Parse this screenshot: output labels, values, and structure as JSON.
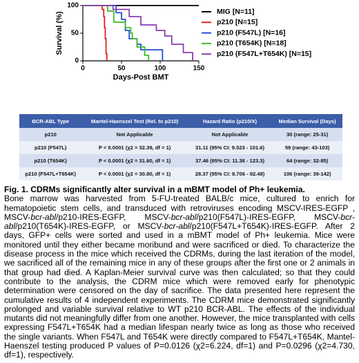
{
  "chart_data": {
    "type": "step",
    "ylabel": "Survival (%)",
    "xlabel": "Days-Post BMT",
    "xlim": [
      0,
      150
    ],
    "ylim": [
      0,
      100
    ],
    "xticks": [
      0,
      50,
      100,
      150
    ],
    "yticks": [
      0,
      50,
      100
    ],
    "series": [
      {
        "name": "MIG [N=11]",
        "color": "#000000",
        "x": [
          0,
          150
        ],
        "values": [
          100,
          100
        ]
      },
      {
        "name": "p210 [N=15]",
        "color": "#e0201b",
        "x": [
          0,
          25,
          27,
          28,
          29,
          30,
          31
        ],
        "values": [
          100,
          93,
          80,
          60,
          40,
          13,
          0
        ]
      },
      {
        "name": "p210 (F547L) [N=16]",
        "color": "#1f4fd6",
        "x": [
          0,
          43,
          50,
          55,
          60,
          70,
          75,
          103
        ],
        "values": [
          100,
          87,
          75,
          55,
          40,
          30,
          20,
          0
        ]
      },
      {
        "name": "p210 (T654K) [N=18]",
        "color": "#3dbb2a",
        "x": [
          0,
          32,
          40,
          55,
          62,
          64,
          70,
          80,
          85
        ],
        "values": [
          100,
          90,
          70,
          60,
          50,
          40,
          25,
          10,
          0
        ]
      },
      {
        "name": "p210 (F547L+T654K) [N=15]",
        "color": "#8a3fb0",
        "x": [
          0,
          39,
          60,
          75,
          95,
          106,
          115,
          130,
          142
        ],
        "values": [
          100,
          93,
          80,
          65,
          55,
          45,
          30,
          15,
          0
        ]
      }
    ]
  },
  "table": {
    "header": [
      "BCR-ABL Type",
      "Mantel-Haenszel Test (Rel. to p210)",
      "Hazard Ratio (p210/X)",
      "Median Survival (Days)"
    ],
    "rows": [
      [
        "p210",
        "Not Applicable",
        "Not Applicable",
        "30 (range: 25-31)"
      ],
      [
        "p210 (F547L)",
        "P < 0.0001 (χ2 = 32.39, df = 1)",
        "31.11 (95% CI: 9.523 - 101.6)",
        "59 (range: 43-103)"
      ],
      [
        "p210 (T654K)",
        "P < 0.0001 (χ2 = 31.60, df = 1)",
        "37.46 (95% CI: 11.38 - 123.3)",
        "64 (range: 32-85)"
      ],
      [
        "p210 (F547L+T654K)",
        "P < 0.0001 (χ2 = 30.80, df = 1)",
        "28.37 (95% CI: 8.706 - 92.48)",
        "106 (range: 39-142)"
      ]
    ]
  },
  "caption": {
    "title": "Fig. 1. CDRMs significantly alter survival in a mBMT model of Ph+ leukemia.",
    "body": [
      {
        "text": "Bone marrow was harvested from 5-FU-treated BALB/c mice, cultured to enrich for hematopoietic stem cells, and transduced with retroviruses encoding MSCV-IRES-EGFP , MSCV-"
      },
      {
        "text": "bcr-abl",
        "style": "italic"
      },
      {
        "text": "/p210-IRES-EGFP, MSCV-"
      },
      {
        "text": "bcr-abl",
        "style": "italic"
      },
      {
        "text": "/p210(F547L)-IRES-EGFP, MSCV-"
      },
      {
        "text": "bcr-abl",
        "style": "italic"
      },
      {
        "text": "/p210(T654K)-IRES-EGFP, or MSCV-"
      },
      {
        "text": "bcr-abl",
        "style": "italic"
      },
      {
        "text": "/p210(F547L+T654K)-IRES-EGFP. After 2 days, GFP+ cells were sorted and used in a mBMT model of Ph+ leukemia. Mice were monitored until they either became moribund and were sacrificed or died. To characterize the disease process in the mice which received the CDRMs, during the last iteration of the model, we sacrificed all of the remaining mice in any of these groups after the first one or 2 animals in that group had died. A Kaplan-Meier survival curve was then calculated; so that they could contribute to the analysis, the CDRM mice which were removed early for phenotypic determination were censored on the day of sacrifice. The data presented here represent the cumulative results of 4 independent experiments. The CDRM mice demonstrated significantly prolonged and variable survival relative to WT p210 BCR-ABL. The effects of the individual mutants did not meaningfully differ from one another. However, the mice transplanted with cells expressing F547L+T654K had a median lifespan nearly twice as long as those who received the single variants. When F547L and T654K were directly compared to F547L+T654K, Mantel-Haenszel testing produced P values of P=0.0126 (χ2=6.224, df=1) and P=0.0296 (χ2=4.730, df=1), respectively."
      }
    ]
  }
}
